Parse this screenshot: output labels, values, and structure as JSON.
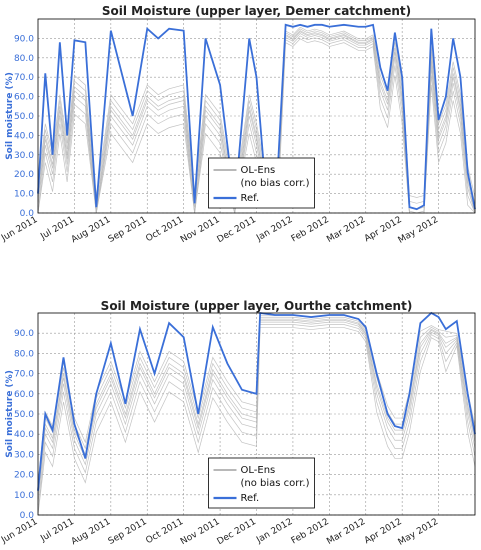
{
  "chart_data": [
    {
      "type": "line",
      "title": "Soil Moisture (upper layer, Demer catchment)",
      "ylabel": "Soil moisture (%)",
      "ylim": [
        0,
        100
      ],
      "yticks": [
        "0.0",
        "10.0",
        "20.0",
        "30.0",
        "40.0",
        "50.0",
        "60.0",
        "70.0",
        "80.0",
        "90.0"
      ],
      "xticks": [
        "Jun 2011",
        "Jul 2011",
        "Aug 2011",
        "Sep 2011",
        "Oct 2011",
        "Nov 2011",
        "Dec 2011",
        "Jan 2012",
        "Feb 2012",
        "Mar 2012",
        "Apr 2012",
        "May 2012"
      ],
      "legend": [
        "OL-Ens",
        "(no bias corr.)",
        "Ref."
      ],
      "legend_position": "lower-center",
      "grid": true,
      "colors": {
        "ref": "#3a6fd8",
        "ens": "#b8b8b8"
      },
      "series": [
        {
          "name": "Ref.",
          "x": [
            0,
            0.2,
            0.4,
            0.6,
            0.8,
            1.0,
            1.3,
            1.6,
            2.0,
            2.6,
            3.0,
            3.3,
            3.6,
            4.0,
            4.3,
            4.6,
            5.0,
            5.4,
            5.8,
            6.0,
            6.2,
            6.4,
            6.6,
            6.8,
            7.0,
            7.2,
            7.4,
            7.6,
            7.8,
            8.0,
            8.4,
            8.8,
            9.0,
            9.2,
            9.4,
            9.6,
            9.8,
            10.0,
            10.2,
            10.4,
            10.6,
            10.8,
            11.0,
            11.2,
            11.4,
            11.6,
            11.8,
            12.0
          ],
          "y": [
            10,
            72,
            30,
            88,
            40,
            89,
            88,
            3,
            94,
            50,
            95,
            90,
            95,
            94,
            5,
            90,
            66,
            4,
            90,
            70,
            24,
            24,
            28,
            97,
            96,
            97,
            96,
            97,
            97,
            96,
            97,
            96,
            96,
            97,
            75,
            63,
            93,
            70,
            3,
            2,
            4,
            95,
            48,
            60,
            90,
            70,
            21,
            2
          ]
        },
        {
          "name": "OL-Ens",
          "x": [
            0,
            0.2,
            0.4,
            0.6,
            0.8,
            1.0,
            1.3,
            1.6,
            2.0,
            2.6,
            3.0,
            3.3,
            3.6,
            4.0,
            4.3,
            4.6,
            5.0,
            5.4,
            5.8,
            6.0,
            6.2,
            6.4,
            6.6,
            6.8,
            7.0,
            7.2,
            7.4,
            7.6,
            7.8,
            8.0,
            8.4,
            8.8,
            9.0,
            9.2,
            9.4,
            9.6,
            9.8,
            10.0,
            10.2,
            10.4,
            10.6,
            10.8,
            11.0,
            11.2,
            11.4,
            11.6,
            11.8,
            12.0
          ],
          "y": [
            8,
            40,
            25,
            55,
            30,
            65,
            60,
            3,
            55,
            40,
            60,
            55,
            58,
            60,
            5,
            55,
            45,
            4,
            55,
            40,
            20,
            18,
            22,
            92,
            90,
            94,
            92,
            93,
            92,
            90,
            92,
            88,
            88,
            90,
            68,
            58,
            85,
            60,
            3,
            2,
            3,
            80,
            40,
            50,
            72,
            55,
            18,
            2
          ]
        }
      ]
    },
    {
      "type": "line",
      "title": "Soil Moisture (upper layer, Ourthe catchment)",
      "ylabel": "Soil moisture (%)",
      "ylim": [
        0,
        100
      ],
      "yticks": [
        "0.0",
        "10.0",
        "20.0",
        "30.0",
        "40.0",
        "50.0",
        "60.0",
        "70.0",
        "80.0",
        "90.0"
      ],
      "xticks": [
        "Jun 2011",
        "Jul 2011",
        "Aug 2011",
        "Sep 2011",
        "Oct 2011",
        "Nov 2011",
        "Dec 2011",
        "Jan 2012",
        "Feb 2012",
        "Mar 2012",
        "Apr 2012",
        "May 2012"
      ],
      "legend": [
        "OL-Ens",
        "(no bias corr.)",
        "Ref."
      ],
      "legend_position": "lower-center",
      "grid": true,
      "colors": {
        "ref": "#3a6fd8",
        "ens": "#b8b8b8"
      },
      "series": [
        {
          "name": "Ref.",
          "x": [
            0,
            0.2,
            0.4,
            0.7,
            1.0,
            1.3,
            1.6,
            2.0,
            2.4,
            2.8,
            3.2,
            3.6,
            4.0,
            4.4,
            4.8,
            5.2,
            5.6,
            6.0,
            6.1,
            6.5,
            7.0,
            7.5,
            8.0,
            8.4,
            8.8,
            9.0,
            9.3,
            9.6,
            9.8,
            10.0,
            10.2,
            10.5,
            10.8,
            11.0,
            11.2,
            11.5,
            11.8,
            12.0
          ],
          "y": [
            12,
            50,
            42,
            78,
            45,
            28,
            60,
            85,
            55,
            92,
            70,
            95,
            88,
            50,
            93,
            75,
            62,
            60,
            100,
            99,
            99,
            98,
            99,
            99,
            97,
            93,
            70,
            50,
            44,
            43,
            60,
            95,
            100,
            98,
            92,
            96,
            60,
            40
          ]
        },
        {
          "name": "OL-Ens",
          "x": [
            0,
            0.2,
            0.4,
            0.7,
            1.0,
            1.3,
            1.6,
            2.0,
            2.4,
            2.8,
            3.2,
            3.6,
            4.0,
            4.4,
            4.8,
            5.2,
            5.6,
            6.0,
            6.1,
            6.5,
            7.0,
            7.5,
            8.0,
            8.4,
            8.8,
            9.0,
            9.3,
            9.6,
            9.8,
            10.0,
            10.2,
            10.5,
            10.8,
            11.0,
            11.2,
            11.5,
            11.8,
            12.0
          ],
          "y": [
            10,
            45,
            38,
            70,
            42,
            30,
            55,
            70,
            50,
            75,
            60,
            75,
            70,
            45,
            72,
            60,
            50,
            48,
            97,
            97,
            97,
            96,
            97,
            97,
            95,
            90,
            65,
            48,
            42,
            42,
            55,
            85,
            92,
            90,
            85,
            88,
            55,
            38
          ]
        }
      ]
    }
  ]
}
